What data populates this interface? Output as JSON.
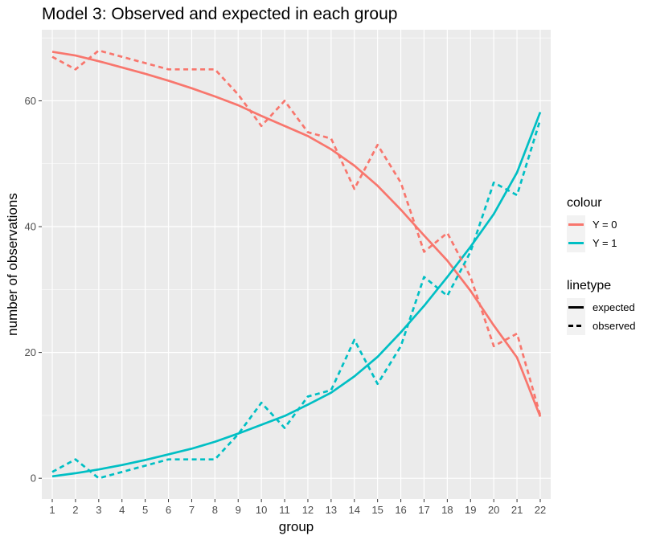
{
  "chart_data": {
    "type": "line",
    "title": "Model 3: Observed and expected in each group",
    "xlabel": "group",
    "ylabel": "number of observations",
    "xlim": [
      0.55,
      22.45
    ],
    "ylim": [
      -3.3,
      71.3
    ],
    "grid": true,
    "x": [
      1,
      2,
      3,
      4,
      5,
      6,
      7,
      8,
      9,
      10,
      11,
      12,
      13,
      14,
      15,
      16,
      17,
      18,
      19,
      20,
      21,
      22
    ],
    "x_ticks": [
      "1",
      "2",
      "3",
      "4",
      "5",
      "6",
      "7",
      "8",
      "9",
      "10",
      "11",
      "12",
      "13",
      "14",
      "15",
      "16",
      "17",
      "18",
      "19",
      "20",
      "21",
      "22"
    ],
    "y_ticks": [
      0,
      20,
      40,
      60
    ],
    "legend_position": "right",
    "colour_legend": {
      "title": "colour",
      "entries": [
        {
          "label": "Y = 0",
          "color": "#F8766D"
        },
        {
          "label": "Y = 1",
          "color": "#00BFC4"
        }
      ]
    },
    "linetype_legend": {
      "title": "linetype",
      "entries": [
        {
          "label": "expected",
          "dash": "solid"
        },
        {
          "label": "observed",
          "dash": "dashed"
        }
      ]
    },
    "series": [
      {
        "colour": "Y = 0",
        "linetype": "expected",
        "color": "#F8766D",
        "values": [
          67.8,
          67.2,
          66.3,
          65.3,
          64.3,
          63.2,
          62.0,
          60.7,
          59.3,
          57.6,
          56.0,
          54.4,
          52.3,
          49.7,
          46.5,
          42.7,
          38.6,
          34.6,
          29.8,
          24.3,
          19.2,
          9.8
        ]
      },
      {
        "colour": "Y = 1",
        "linetype": "expected",
        "color": "#00BFC4",
        "values": [
          0.3,
          0.8,
          1.4,
          2.1,
          2.9,
          3.8,
          4.7,
          5.8,
          7.1,
          8.5,
          9.9,
          11.7,
          13.6,
          16.2,
          19.3,
          23.2,
          27.4,
          32.0,
          36.8,
          42.0,
          48.6,
          58.2
        ]
      },
      {
        "colour": "Y = 0",
        "linetype": "observed",
        "color": "#F8766D",
        "values": [
          67,
          65,
          68,
          67,
          66,
          65,
          65,
          65,
          61,
          56,
          60,
          55,
          54,
          46,
          53,
          47,
          36,
          39,
          32,
          21,
          23,
          10
        ]
      },
      {
        "colour": "Y = 1",
        "linetype": "observed",
        "color": "#00BFC4",
        "values": [
          1,
          3,
          0,
          1,
          2,
          3,
          3,
          3,
          7,
          12,
          8,
          13,
          14,
          22,
          15,
          21,
          32,
          29,
          36,
          47,
          45,
          57
        ]
      }
    ]
  }
}
